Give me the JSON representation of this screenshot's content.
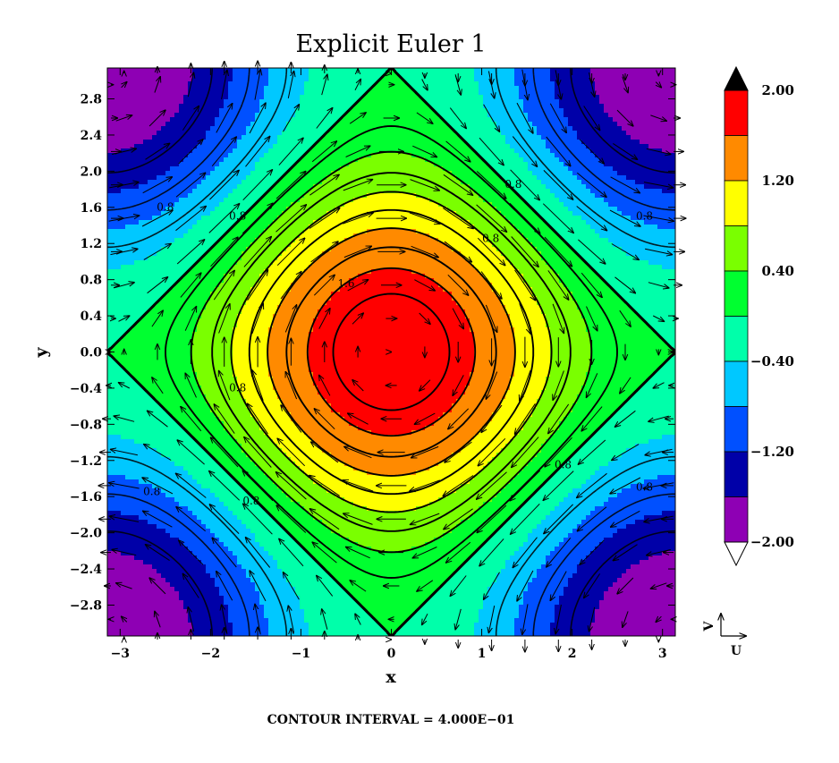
{
  "chart_data": {
    "type": "contour",
    "title": "Explicit Euler 1",
    "xlabel": "x",
    "ylabel": "y",
    "xlim": [
      -3.1416,
      3.1416
    ],
    "ylim": [
      -3.1416,
      3.1416
    ],
    "x_ticks": [
      {
        "value": -3,
        "label": "−3"
      },
      {
        "value": -2,
        "label": "−2"
      },
      {
        "value": -1,
        "label": "−1"
      },
      {
        "value": 0,
        "label": "0"
      },
      {
        "value": 1,
        "label": "1"
      },
      {
        "value": 2,
        "label": "2"
      },
      {
        "value": 3,
        "label": "3"
      }
    ],
    "y_ticks": [
      {
        "value": 2.8,
        "label": "2.8"
      },
      {
        "value": 2.4,
        "label": "2.4"
      },
      {
        "value": 2.0,
        "label": "2.0"
      },
      {
        "value": 1.6,
        "label": "1.6"
      },
      {
        "value": 1.2,
        "label": "1.2"
      },
      {
        "value": 0.8,
        "label": "0.8"
      },
      {
        "value": 0.4,
        "label": "0.4"
      },
      {
        "value": 0.0,
        "label": "0.0"
      },
      {
        "value": -0.4,
        "label": "−0.4"
      },
      {
        "value": -0.8,
        "label": "−0.8"
      },
      {
        "value": -1.2,
        "label": "−1.2"
      },
      {
        "value": -1.6,
        "label": "−1.6"
      },
      {
        "value": -2.0,
        "label": "−2.0"
      },
      {
        "value": -2.4,
        "label": "−2.4"
      },
      {
        "value": -2.8,
        "label": "−2.8"
      }
    ],
    "field": "cos(x) + cos(y)",
    "fill_levels": [
      -2.0,
      -1.6,
      -1.2,
      -0.8,
      -0.4,
      0.0,
      0.4,
      0.8,
      1.2,
      1.6,
      2.0
    ],
    "fill_colors": [
      "#8e00b4",
      "#0000a8",
      "#0050ff",
      "#00c8ff",
      "#00ffaa",
      "#00ff30",
      "#7aff00",
      "#ffff00",
      "#ff8a00",
      "#ff0000"
    ],
    "over_color": "#000000",
    "under_color": "#ffffff",
    "line_levels": [
      0,
      0.2,
      0.4,
      0.6,
      0.8,
      1.0,
      1.2,
      1.4,
      1.6,
      1.8,
      2.0,
      2.2,
      2.4,
      2.6,
      2.8,
      3.0,
      3.2,
      3.4,
      3.6
    ],
    "contour_labels": [
      {
        "text": "0.8",
        "x": -2.5,
        "y": 1.6
      },
      {
        "text": "0.8",
        "x": -1.7,
        "y": 1.5
      },
      {
        "text": "0.8",
        "x": 1.35,
        "y": 1.85
      },
      {
        "text": "0.8",
        "x": 1.1,
        "y": 1.25
      },
      {
        "text": "0.8",
        "x": 2.8,
        "y": 1.5
      },
      {
        "text": "1.6",
        "x": -0.5,
        "y": 0.75
      },
      {
        "text": "0.8",
        "x": -1.7,
        "y": -0.4
      },
      {
        "text": "0.8",
        "x": -2.65,
        "y": -1.55
      },
      {
        "text": "0.8",
        "x": -1.55,
        "y": -1.65
      },
      {
        "text": "0.8",
        "x": 1.9,
        "y": -1.25
      },
      {
        "text": "0.8",
        "x": 2.8,
        "y": -1.5
      }
    ],
    "vector_field": {
      "u": "sin(y)",
      "v": "-sin(x)"
    },
    "colorbar": {
      "position": "right",
      "tick_labels": [
        "2.00",
        "1.20",
        "0.40",
        "−0.40",
        "−1.20",
        "−2.00"
      ],
      "tick_values": [
        2.0,
        1.2,
        0.4,
        -0.4,
        -1.2,
        -2.0
      ]
    },
    "vector_key": {
      "u_label": "U",
      "v_label": "V"
    },
    "footer": "CONTOUR INTERVAL = 4.000E−01",
    "grid": false
  }
}
